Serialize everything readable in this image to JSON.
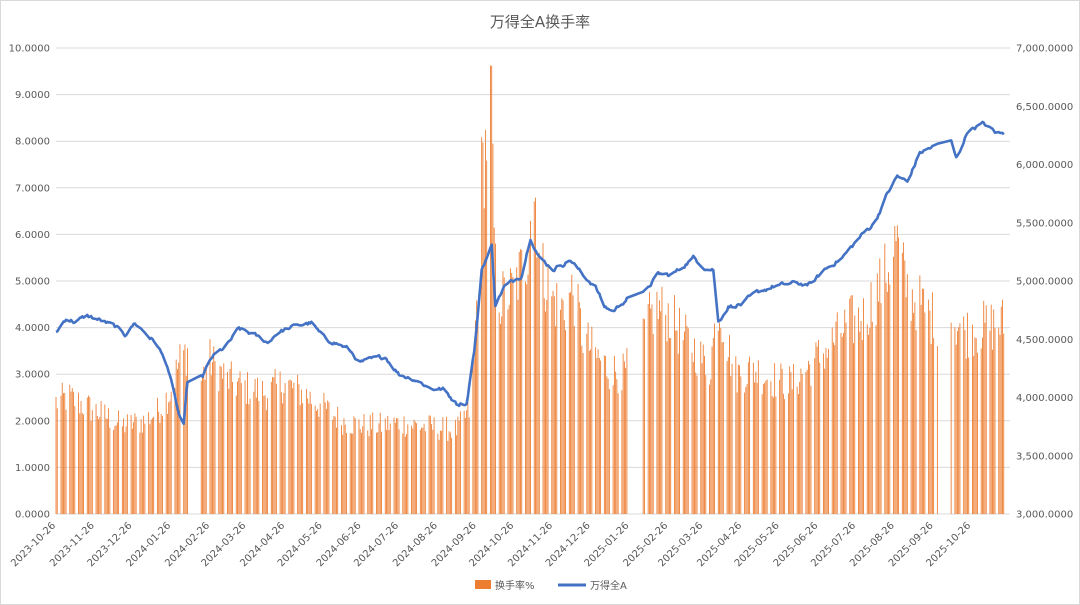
{
  "chart_data": {
    "type": "bar+line",
    "title": "万得全A换手率",
    "left_axis": {
      "min": 0,
      "max": 10,
      "step": 1,
      "ticks": [
        "0.0000",
        "1.0000",
        "2.0000",
        "3.0000",
        "4.0000",
        "5.0000",
        "6.0000",
        "7.0000",
        "8.0000",
        "9.0000",
        "10.0000"
      ]
    },
    "right_axis": {
      "min": 3000,
      "max": 7000,
      "step": 500,
      "ticks": [
        "3,000.0000",
        "3,500.0000",
        "4,000.0000",
        "4,500.0000",
        "5,000.0000",
        "5,500.0000",
        "6,000.0000",
        "6,500.0000",
        "7,000.0000"
      ]
    },
    "x_ticks": [
      "2023-10-26",
      "2023-11-26",
      "2023-12-26",
      "2024-01-26",
      "2024-02-26",
      "2024-03-26",
      "2024-04-26",
      "2024-05-26",
      "2024-06-26",
      "2024-07-26",
      "2024-08-26",
      "2024-09-26",
      "2024-10-26",
      "2024-11-26",
      "2024-12-26",
      "2025-01-26",
      "2025-02-26",
      "2025-03-26",
      "2025-04-26",
      "2025-05-26",
      "2025-06-26",
      "2025-07-26",
      "2025-08-26",
      "2025-09-26",
      "2025-10-26"
    ],
    "x_range": [
      "2023-10-26",
      "2025-11-26"
    ],
    "grid": true,
    "legend_position": "bottom",
    "series": [
      {
        "name": "换手率%",
        "type": "bar",
        "color": "#ED7D31",
        "axis": "left",
        "keypoints": [
          [
            "2023-10-26",
            2.4
          ],
          [
            "2023-11-05",
            2.5
          ],
          [
            "2023-11-20",
            2.3
          ],
          [
            "2023-12-05",
            2.1
          ],
          [
            "2023-12-18",
            1.9
          ],
          [
            "2024-01-05",
            2.0
          ],
          [
            "2024-01-15",
            2.2
          ],
          [
            "2024-01-25",
            2.6
          ],
          [
            "2024-02-02",
            3.3
          ],
          [
            "2024-02-08",
            3.5
          ],
          [
            "2024-02-19",
            2.9
          ],
          [
            "2024-02-26",
            3.3
          ],
          [
            "2024-03-10",
            2.9
          ],
          [
            "2024-03-26",
            2.7
          ],
          [
            "2024-04-10",
            2.6
          ],
          [
            "2024-04-25",
            2.8
          ],
          [
            "2024-05-10",
            2.6
          ],
          [
            "2024-05-26",
            2.3
          ],
          [
            "2024-06-10",
            2.0
          ],
          [
            "2024-06-26",
            1.9
          ],
          [
            "2024-07-10",
            1.9
          ],
          [
            "2024-07-26",
            1.95
          ],
          [
            "2024-08-10",
            1.9
          ],
          [
            "2024-08-26",
            1.85
          ],
          [
            "2024-09-10",
            1.8
          ],
          [
            "2024-09-20",
            2.2
          ],
          [
            "2024-09-24",
            3.5
          ],
          [
            "2024-09-27",
            5.0
          ],
          [
            "2024-09-30",
            7.2
          ],
          [
            "2024-10-08",
            9.0
          ],
          [
            "2024-10-09",
            7.0
          ],
          [
            "2024-10-11",
            5.2
          ],
          [
            "2024-10-15",
            4.6
          ],
          [
            "2024-10-25",
            4.8
          ],
          [
            "2024-11-05",
            5.5
          ],
          [
            "2024-11-08",
            6.6
          ],
          [
            "2024-11-12",
            6.8
          ],
          [
            "2024-11-15",
            5.4
          ],
          [
            "2024-11-26",
            4.6
          ],
          [
            "2024-12-05",
            4.4
          ],
          [
            "2024-12-12",
            4.8
          ],
          [
            "2024-12-20",
            3.8
          ],
          [
            "2024-12-30",
            3.4
          ],
          [
            "2025-01-10",
            3.1
          ],
          [
            "2025-01-22",
            3.0
          ],
          [
            "2025-02-05",
            3.8
          ],
          [
            "2025-02-15",
            4.4
          ],
          [
            "2025-02-26",
            4.3
          ],
          [
            "2025-03-10",
            3.8
          ],
          [
            "2025-03-20",
            3.5
          ],
          [
            "2025-03-31",
            3.1
          ],
          [
            "2025-04-07",
            4.5
          ],
          [
            "2025-04-10",
            4.2
          ],
          [
            "2025-04-20",
            3.0
          ],
          [
            "2025-05-05",
            3.1
          ],
          [
            "2025-05-20",
            2.9
          ],
          [
            "2025-06-05",
            2.8
          ],
          [
            "2025-06-20",
            3.2
          ],
          [
            "2025-07-05",
            3.6
          ],
          [
            "2025-07-20",
            4.1
          ],
          [
            "2025-08-01",
            4.2
          ],
          [
            "2025-08-12",
            4.8
          ],
          [
            "2025-08-20",
            5.2
          ],
          [
            "2025-08-27",
            5.9
          ],
          [
            "2025-09-05",
            4.8
          ],
          [
            "2025-09-15",
            4.5
          ],
          [
            "2025-09-25",
            4.2
          ],
          [
            "2025-10-09",
            4.3
          ],
          [
            "2025-10-20",
            3.9
          ],
          [
            "2025-11-05",
            4.0
          ],
          [
            "2025-11-21",
            4.1
          ]
        ],
        "gaps": [
          [
            "2024-02-09",
            "2024-02-18"
          ],
          [
            "2025-01-27",
            "2025-02-05"
          ],
          [
            "2025-09-30",
            "2025-10-09"
          ]
        ]
      },
      {
        "name": "万得全A",
        "type": "line",
        "color": "#4472C4",
        "axis": "right",
        "keypoints": [
          [
            "2023-10-26",
            4560
          ],
          [
            "2023-11-03",
            4680
          ],
          [
            "2023-11-10",
            4650
          ],
          [
            "2023-11-20",
            4700
          ],
          [
            "2023-12-01",
            4660
          ],
          [
            "2023-12-12",
            4610
          ],
          [
            "2023-12-20",
            4540
          ],
          [
            "2023-12-28",
            4640
          ],
          [
            "2024-01-05",
            4560
          ],
          [
            "2024-01-15",
            4450
          ],
          [
            "2024-01-23",
            4270
          ],
          [
            "2024-02-01",
            3860
          ],
          [
            "2024-02-05",
            3760
          ],
          [
            "2024-02-08",
            4130
          ],
          [
            "2024-02-20",
            4180
          ],
          [
            "2024-02-28",
            4350
          ],
          [
            "2024-03-10",
            4440
          ],
          [
            "2024-03-20",
            4590
          ],
          [
            "2024-04-01",
            4540
          ],
          [
            "2024-04-12",
            4470
          ],
          [
            "2024-04-20",
            4560
          ],
          [
            "2024-05-06",
            4620
          ],
          [
            "2024-05-17",
            4640
          ],
          [
            "2024-05-26",
            4520
          ],
          [
            "2024-06-05",
            4470
          ],
          [
            "2024-06-15",
            4420
          ],
          [
            "2024-06-25",
            4300
          ],
          [
            "2024-07-05",
            4330
          ],
          [
            "2024-07-15",
            4350
          ],
          [
            "2024-07-26",
            4200
          ],
          [
            "2024-08-09",
            4150
          ],
          [
            "2024-08-20",
            4080
          ],
          [
            "2024-08-30",
            4070
          ],
          [
            "2024-09-10",
            3950
          ],
          [
            "2024-09-18",
            3950
          ],
          [
            "2024-09-24",
            4400
          ],
          [
            "2024-09-26",
            4600
          ],
          [
            "2024-09-30",
            5100
          ],
          [
            "2024-10-08",
            5300
          ],
          [
            "2024-10-11",
            4800
          ],
          [
            "2024-10-18",
            4950
          ],
          [
            "2024-11-01",
            5050
          ],
          [
            "2024-11-08",
            5380
          ],
          [
            "2024-11-15",
            5200
          ],
          [
            "2024-11-26",
            5100
          ],
          [
            "2024-12-10",
            5180
          ],
          [
            "2024-12-20",
            5050
          ],
          [
            "2024-12-30",
            4950
          ],
          [
            "2025-01-06",
            4780
          ],
          [
            "2025-01-13",
            4740
          ],
          [
            "2025-01-24",
            4850
          ],
          [
            "2025-02-07",
            4900
          ],
          [
            "2025-02-18",
            5060
          ],
          [
            "2025-02-28",
            5050
          ],
          [
            "2025-03-07",
            5100
          ],
          [
            "2025-03-18",
            5200
          ],
          [
            "2025-03-28",
            5110
          ],
          [
            "2025-04-03",
            5100
          ],
          [
            "2025-04-07",
            4650
          ],
          [
            "2025-04-15",
            4780
          ],
          [
            "2025-04-25",
            4800
          ],
          [
            "2025-05-08",
            4900
          ],
          [
            "2025-05-20",
            4950
          ],
          [
            "2025-06-05",
            4980
          ],
          [
            "2025-06-20",
            4970
          ],
          [
            "2025-07-01",
            5100
          ],
          [
            "2025-07-15",
            5200
          ],
          [
            "2025-07-31",
            5400
          ],
          [
            "2025-08-10",
            5500
          ],
          [
            "2025-08-20",
            5750
          ],
          [
            "2025-08-28",
            5900
          ],
          [
            "2025-09-05",
            5850
          ],
          [
            "2025-09-15",
            6100
          ],
          [
            "2025-09-25",
            6150
          ],
          [
            "2025-10-10",
            6200
          ],
          [
            "2025-10-14",
            6050
          ],
          [
            "2025-10-24",
            6300
          ],
          [
            "2025-11-05",
            6350
          ],
          [
            "2025-11-14",
            6280
          ],
          [
            "2025-11-21",
            6260
          ]
        ]
      }
    ]
  }
}
